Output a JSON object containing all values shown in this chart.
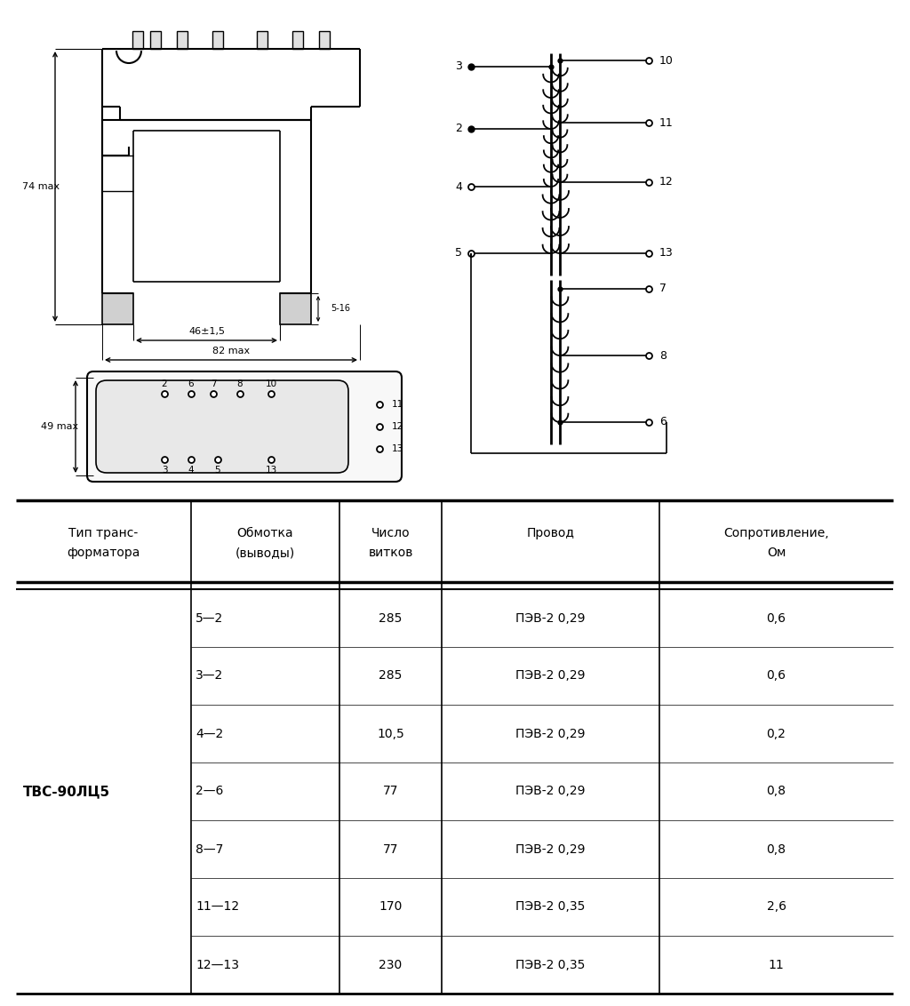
{
  "transformer_type": "ТВС-90ЛЦ5",
  "table_headers_line1": [
    "Тип транс-",
    "Обмотка",
    "Число",
    "Провод",
    "Сопротивление,"
  ],
  "table_headers_line2": [
    "форматора",
    "(выводы)",
    "витков",
    "",
    "Ом"
  ],
  "rows": [
    [
      "ТВС-90ЛЦ5",
      "5—2",
      "285",
      "ПЭВ-2 0,29",
      "0,6"
    ],
    [
      "",
      "3—2",
      "285",
      "ПЭВ-2 0,29",
      "0,6"
    ],
    [
      "",
      "4—2",
      "10,5",
      "ПЭВ-2 0,29",
      "0,2"
    ],
    [
      "",
      "2—6",
      "77",
      "ПЭВ-2 0,29",
      "0,8"
    ],
    [
      "",
      "8—7",
      "77",
      "ПЭВ-2 0,29",
      "0,8"
    ],
    [
      "",
      "11—12",
      "170",
      "ПЭВ-2 0,35",
      "2,6"
    ],
    [
      "",
      "12—13",
      "230",
      "ПЭВ-2 0,35",
      "11"
    ]
  ],
  "bg_color": "#ffffff",
  "line_color": "#000000",
  "text_color": "#000000"
}
